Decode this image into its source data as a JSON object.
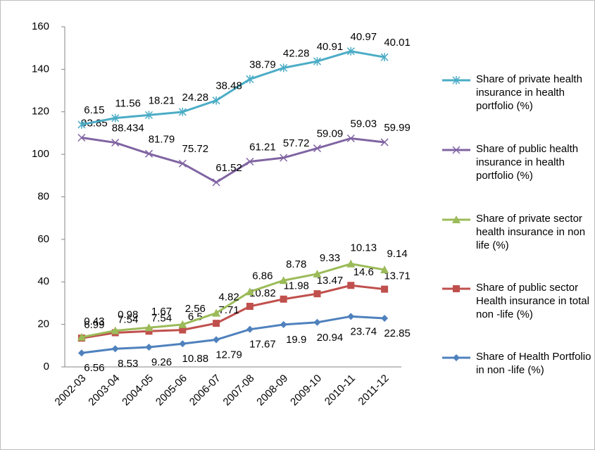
{
  "chart_data": {
    "type": "line",
    "stacked": true,
    "categories": [
      "2002-03",
      "2003-04",
      "2004-05",
      "2005-06",
      "2006-07",
      "2007-08",
      "2008-09",
      "2009-10",
      "2010-11",
      "2011-12"
    ],
    "ylim": [
      0,
      160
    ],
    "yticks": [
      0,
      20,
      40,
      60,
      80,
      100,
      120,
      140,
      160
    ],
    "grid": false,
    "legend": "right",
    "series": [
      {
        "name": "Share of Health Portfolio  in  non -life (%)",
        "color": "#4f81bd",
        "marker": "diamond",
        "values": [
          6.56,
          8.53,
          9.26,
          10.88,
          12.79,
          17.67,
          19.9,
          20.94,
          23.74,
          22.85
        ]
      },
      {
        "name": "Share of public sector Health insurance in total non -life (%)",
        "color": "#c0504d",
        "marker": "square",
        "values": [
          6.99,
          7.54,
          7.54,
          6.5,
          7.71,
          10.82,
          11.98,
          13.47,
          14.6,
          13.71
        ]
      },
      {
        "name": "Share of private sector health insurance in  non life  (%)",
        "color": "#9bbb59",
        "marker": "triangle",
        "values": [
          0.43,
          0.98,
          1.67,
          2.56,
          4.82,
          6.86,
          8.78,
          9.33,
          10.13,
          9.14
        ]
      },
      {
        "name": "Share of public health insurance in health portfolio (%)",
        "color": "#8064a2",
        "marker": "x",
        "values": [
          93.85,
          88.434,
          81.79,
          75.72,
          61.52,
          61.21,
          57.72,
          59.09,
          59.03,
          59.99
        ]
      },
      {
        "name": "Share of private health insurance in health portfolio (%)",
        "color": "#4bacc6",
        "marker": "star",
        "values": [
          6.15,
          11.56,
          18.21,
          24.28,
          38.48,
          38.79,
          42.28,
          40.91,
          40.97,
          40.01
        ]
      }
    ]
  }
}
